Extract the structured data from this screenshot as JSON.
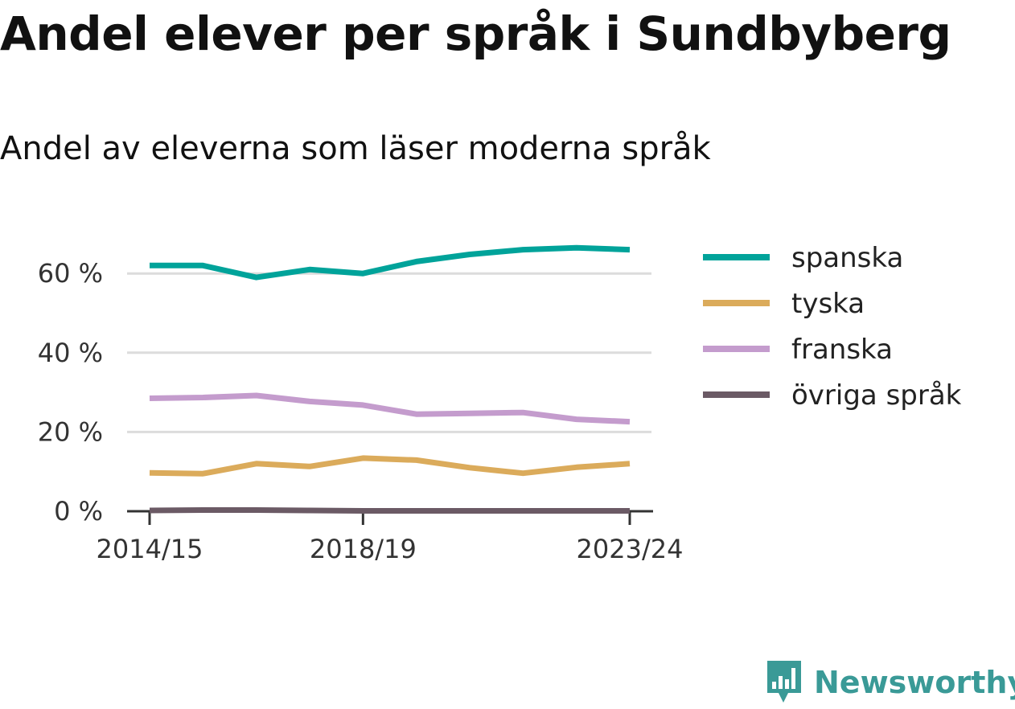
{
  "title": "Andel elever per språk i Sundbyberg",
  "subtitle": "Andel av eleverna som läser moderna språk",
  "brand": {
    "name": "Newsworthy",
    "color": "#3a9a97",
    "icon": "newsworthy-logo-icon"
  },
  "chart_data": {
    "type": "line",
    "x": [
      "2014/15",
      "2015/16",
      "2016/17",
      "2017/18",
      "2018/19",
      "2019/20",
      "2020/21",
      "2021/22",
      "2022/23",
      "2023/24"
    ],
    "x_tick_labels": [
      "2014/15",
      "2018/19",
      "2023/24"
    ],
    "y_tick_labels": [
      "0 %",
      "20 %",
      "40 %",
      "60 %"
    ],
    "y_ticks": [
      0,
      20,
      40,
      60
    ],
    "ylim": [
      0,
      70
    ],
    "grid": true,
    "legend_position": "right",
    "series": [
      {
        "name": "spanska",
        "color": "#00a39a",
        "values": [
          62,
          62,
          59,
          61,
          60,
          63,
          64.8,
          66,
          66.5,
          66
        ]
      },
      {
        "name": "tyska",
        "color": "#dbab5b",
        "values": [
          9.7,
          9.5,
          12,
          11.3,
          13.4,
          12.9,
          11,
          9.6,
          11.1,
          12
        ]
      },
      {
        "name": "franska",
        "color": "#c49ccd",
        "values": [
          28.5,
          28.7,
          29.2,
          27.7,
          26.8,
          24.5,
          24.7,
          24.9,
          23.2,
          22.6
        ]
      },
      {
        "name": "övriga språk",
        "color": "#6b5a65",
        "values": [
          0.2,
          0.3,
          0.3,
          0.2,
          0.1,
          0.1,
          0.1,
          0.1,
          0.1,
          0.1
        ]
      }
    ]
  }
}
